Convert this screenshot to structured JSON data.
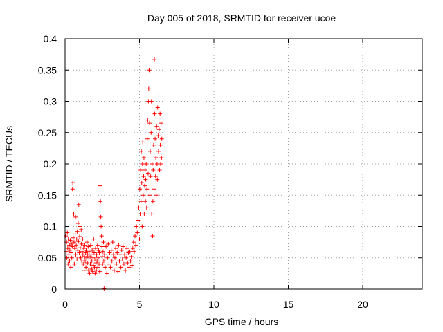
{
  "chart_data": {
    "type": "scatter",
    "title": "Day 005 of 2018, SRMTID for receiver ucoe",
    "xlabel": "GPS time / hours",
    "ylabel": "SRMTID / TECUs",
    "xlim": [
      0,
      24
    ],
    "ylim": [
      0,
      0.4
    ],
    "x_ticks": [
      "0",
      "5",
      "10",
      "15",
      "20"
    ],
    "y_ticks": [
      "0",
      "0.05",
      "0.1",
      "0.15",
      "0.2",
      "0.25",
      "0.3",
      "0.35",
      "0.4"
    ],
    "grid": true,
    "marker": "+",
    "color": "#ff0000",
    "series": [
      {
        "points": [
          [
            0.05,
            0.085
          ],
          [
            0.08,
            0.06
          ],
          [
            0.1,
            0.075
          ],
          [
            0.12,
            0.05
          ],
          [
            0.15,
            0.09
          ],
          [
            0.18,
            0.065
          ],
          [
            0.2,
            0.04
          ],
          [
            0.22,
            0.08
          ],
          [
            0.25,
            0.055
          ],
          [
            0.28,
            0.07
          ],
          [
            0.3,
            0.045
          ],
          [
            0.32,
            0.062
          ],
          [
            0.35,
            0.078
          ],
          [
            0.38,
            0.035
          ],
          [
            0.4,
            0.058
          ],
          [
            0.42,
            0.072
          ],
          [
            0.45,
            0.05
          ],
          [
            0.48,
            0.068
          ],
          [
            0.5,
            0.16
          ],
          [
            0.52,
            0.17
          ],
          [
            0.55,
            0.082
          ],
          [
            0.58,
            0.12
          ],
          [
            0.6,
            0.075
          ],
          [
            0.62,
            0.04
          ],
          [
            0.65,
            0.065
          ],
          [
            0.68,
            0.088
          ],
          [
            0.7,
            0.115
          ],
          [
            0.72,
            0.055
          ],
          [
            0.75,
            0.07
          ],
          [
            0.78,
            0.08
          ],
          [
            0.8,
            0.048
          ],
          [
            0.82,
            0.092
          ],
          [
            0.85,
            0.062
          ],
          [
            0.88,
            0.105
          ],
          [
            0.9,
            0.076
          ],
          [
            0.92,
            0.135
          ],
          [
            0.95,
            0.058
          ],
          [
            0.98,
            0.084
          ],
          [
            1.0,
            0.1
          ],
          [
            1.02,
            0.066
          ],
          [
            1.05,
            0.05
          ],
          [
            1.08,
            0.095
          ],
          [
            1.1,
            0.072
          ],
          [
            1.12,
            0.045
          ],
          [
            1.15,
            0.06
          ],
          [
            1.18,
            0.08
          ],
          [
            1.2,
            0.055
          ],
          [
            1.22,
            0.04
          ],
          [
            1.25,
            0.065
          ],
          [
            1.28,
            0.03
          ],
          [
            1.3,
            0.052
          ],
          [
            1.32,
            0.07
          ],
          [
            1.35,
            0.045
          ],
          [
            1.38,
            0.058
          ],
          [
            1.4,
            0.035
          ],
          [
            1.42,
            0.062
          ],
          [
            1.45,
            0.05
          ],
          [
            1.48,
            0.075
          ],
          [
            1.5,
            0.042
          ],
          [
            1.52,
            0.055
          ],
          [
            1.55,
            0.068
          ],
          [
            1.58,
            0.03
          ],
          [
            1.6,
            0.048
          ],
          [
            1.62,
            0.06
          ],
          [
            1.65,
            0.025
          ],
          [
            1.68,
            0.052
          ],
          [
            1.7,
            0.04
          ],
          [
            1.72,
            0.07
          ],
          [
            1.75,
            0.055
          ],
          [
            1.78,
            0.032
          ],
          [
            1.8,
            0.045
          ],
          [
            1.82,
            0.062
          ],
          [
            1.85,
            0.028
          ],
          [
            1.88,
            0.05
          ],
          [
            1.9,
            0.038
          ],
          [
            1.92,
            0.08
          ],
          [
            1.95,
            0.058
          ],
          [
            1.98,
            0.035
          ],
          [
            2.0,
            0.048
          ],
          [
            2.02,
            0.025
          ],
          [
            2.05,
            0.065
          ],
          [
            2.08,
            0.042
          ],
          [
            2.1,
            0.03
          ],
          [
            2.12,
            0.055
          ],
          [
            2.15,
            0.045
          ],
          [
            2.18,
            0.07
          ],
          [
            2.2,
            0.035
          ],
          [
            2.22,
            0.05
          ],
          [
            2.25,
            0.062
          ],
          [
            2.28,
            0.04
          ],
          [
            2.3,
            0.058
          ],
          [
            2.32,
            0.028
          ],
          [
            2.35,
            0.165
          ],
          [
            2.38,
            0.14
          ],
          [
            2.4,
            0.115
          ],
          [
            2.42,
            0.1
          ],
          [
            2.45,
            0.085
          ],
          [
            2.48,
            0.068
          ],
          [
            2.5,
            0.052
          ],
          [
            2.52,
            0.04
          ],
          [
            2.55,
            0.06
          ],
          [
            2.58,
            0.075
          ],
          [
            2.6,
            0.045
          ],
          [
            2.62,
            0.001
          ],
          [
            2.65,
            0.055
          ],
          [
            2.7,
            0.035
          ],
          [
            2.75,
            0.068
          ],
          [
            2.8,
            0.025
          ],
          [
            2.85,
            0.05
          ],
          [
            2.9,
            0.072
          ],
          [
            2.95,
            0.04
          ],
          [
            3.0,
            0.058
          ],
          [
            3.05,
            0.035
          ],
          [
            3.1,
            0.062
          ],
          [
            3.15,
            0.045
          ],
          [
            3.2,
            0.075
          ],
          [
            3.25,
            0.055
          ],
          [
            3.3,
            0.03
          ],
          [
            3.35,
            0.05
          ],
          [
            3.4,
            0.065
          ],
          [
            3.45,
            0.04
          ],
          [
            3.5,
            0.058
          ],
          [
            3.55,
            0.028
          ],
          [
            3.6,
            0.07
          ],
          [
            3.65,
            0.045
          ],
          [
            3.7,
            0.055
          ],
          [
            3.75,
            0.035
          ],
          [
            3.8,
            0.062
          ],
          [
            3.85,
            0.048
          ],
          [
            3.9,
            0.068
          ],
          [
            3.95,
            0.04
          ],
          [
            4.0,
            0.055
          ],
          [
            4.05,
            0.03
          ],
          [
            4.1,
            0.05
          ],
          [
            4.15,
            0.065
          ],
          [
            4.2,
            0.042
          ],
          [
            4.25,
            0.058
          ],
          [
            4.3,
            0.035
          ],
          [
            4.35,
            0.06
          ],
          [
            4.4,
            0.045
          ],
          [
            4.45,
            0.052
          ],
          [
            4.5,
            0.038
          ],
          [
            4.55,
            0.065
          ],
          [
            4.6,
            0.075
          ],
          [
            4.65,
            0.06
          ],
          [
            4.7,
            0.085
          ],
          [
            4.75,
            0.07
          ],
          [
            4.8,
            0.1
          ],
          [
            4.85,
            0.09
          ],
          [
            4.9,
            0.11
          ],
          [
            4.95,
            0.13
          ],
          [
            5.0,
            0.08
          ],
          [
            5.02,
            0.16
          ],
          [
            5.05,
            0.12
          ],
          [
            5.08,
            0.19
          ],
          [
            5.1,
            0.14
          ],
          [
            5.12,
            0.22
          ],
          [
            5.15,
            0.17
          ],
          [
            5.18,
            0.1
          ],
          [
            5.2,
            0.2
          ],
          [
            5.22,
            0.235
          ],
          [
            5.25,
            0.15
          ],
          [
            5.28,
            0.18
          ],
          [
            5.3,
            0.21
          ],
          [
            5.32,
            0.12
          ],
          [
            5.35,
            0.165
          ],
          [
            5.38,
            0.19
          ],
          [
            5.4,
            0.14
          ],
          [
            5.42,
            0.175
          ],
          [
            5.45,
            0.2
          ],
          [
            5.48,
            0.13
          ],
          [
            5.5,
            0.16
          ],
          [
            5.52,
            0.24
          ],
          [
            5.55,
            0.27
          ],
          [
            5.58,
            0.185
          ],
          [
            5.6,
            0.3
          ],
          [
            5.62,
            0.32
          ],
          [
            5.65,
            0.35
          ],
          [
            5.68,
            0.265
          ],
          [
            5.7,
            0.15
          ],
          [
            5.72,
            0.22
          ],
          [
            5.75,
            0.18
          ],
          [
            5.78,
            0.25
          ],
          [
            5.8,
            0.3
          ],
          [
            5.82,
            0.12
          ],
          [
            5.85,
            0.2
          ],
          [
            5.88,
            0.085
          ],
          [
            5.9,
            0.14
          ],
          [
            5.92,
            0.19
          ],
          [
            5.95,
            0.23
          ],
          [
            5.98,
            0.16
          ],
          [
            6.0,
            0.367
          ],
          [
            6.02,
            0.28
          ],
          [
            6.05,
            0.24
          ],
          [
            6.08,
            0.18
          ],
          [
            6.1,
            0.21
          ],
          [
            6.12,
            0.15
          ],
          [
            6.15,
            0.26
          ],
          [
            6.18,
            0.2
          ],
          [
            6.2,
            0.175
          ],
          [
            6.22,
            0.29
          ],
          [
            6.25,
            0.245
          ],
          [
            6.28,
            0.22
          ],
          [
            6.3,
            0.31
          ],
          [
            6.32,
            0.255
          ],
          [
            6.35,
            0.19
          ],
          [
            6.38,
            0.28
          ],
          [
            6.4,
            0.23
          ],
          [
            6.42,
            0.2
          ],
          [
            6.45,
            0.265
          ],
          [
            6.48,
            0.21
          ],
          [
            6.5,
            0.24
          ]
        ]
      }
    ]
  }
}
